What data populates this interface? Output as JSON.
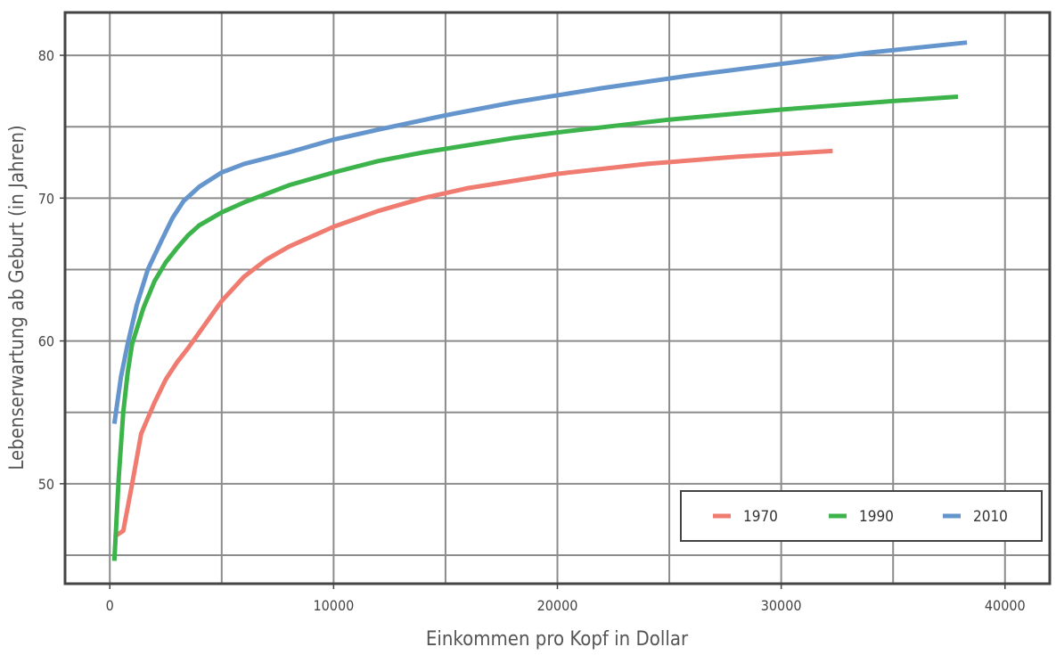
{
  "chart_data": {
    "type": "line",
    "xlabel": "Einkommen pro Kopf in Dollar",
    "ylabel": "Lebenserwartung ab Geburt (in Jahren)",
    "xlim": [
      -2000,
      42000
    ],
    "ylim": [
      43,
      83
    ],
    "xticks": [
      0,
      10000,
      20000,
      30000,
      40000
    ],
    "yticks": [
      50,
      60,
      70,
      80
    ],
    "grid": true,
    "legend_position": "bottom-right",
    "series": [
      {
        "name": "1970",
        "color": "#f07b70",
        "x": [
          200,
          600,
          1000,
          1400,
          2000,
          2500,
          3000,
          3500,
          4000,
          5000,
          6000,
          7000,
          8000,
          10000,
          12000,
          14000,
          16000,
          18000,
          20000,
          24000,
          28000,
          32300
        ],
        "y": [
          46.3,
          46.7,
          50.0,
          53.5,
          55.7,
          57.3,
          58.5,
          59.5,
          60.6,
          62.8,
          64.5,
          65.7,
          66.6,
          68.0,
          69.1,
          70.0,
          70.7,
          71.2,
          71.7,
          72.4,
          72.9,
          73.3
        ]
      },
      {
        "name": "1990",
        "color": "#3cb44b",
        "x": [
          200,
          400,
          600,
          800,
          1000,
          1500,
          2000,
          2500,
          3000,
          3500,
          4000,
          5000,
          6000,
          7000,
          8000,
          10000,
          12000,
          14000,
          16000,
          18000,
          20000,
          25000,
          30000,
          35000,
          37900
        ],
        "y": [
          44.6,
          50.5,
          55.0,
          57.8,
          59.8,
          62.3,
          64.2,
          65.5,
          66.5,
          67.4,
          68.1,
          69.0,
          69.7,
          70.3,
          70.9,
          71.8,
          72.6,
          73.2,
          73.7,
          74.2,
          74.6,
          75.5,
          76.2,
          76.8,
          77.1
        ]
      },
      {
        "name": "2010",
        "color": "#6495cd",
        "x": [
          200,
          500,
          800,
          1200,
          1700,
          2300,
          2800,
          3300,
          4000,
          5000,
          6000,
          7000,
          8000,
          10000,
          12000,
          15000,
          18000,
          22000,
          26000,
          30000,
          34000,
          38300
        ],
        "y": [
          54.2,
          57.5,
          59.8,
          62.5,
          65.0,
          67.0,
          68.6,
          69.8,
          70.8,
          71.8,
          72.4,
          72.8,
          73.2,
          74.1,
          74.8,
          75.8,
          76.7,
          77.7,
          78.6,
          79.4,
          80.2,
          80.9
        ]
      }
    ]
  }
}
